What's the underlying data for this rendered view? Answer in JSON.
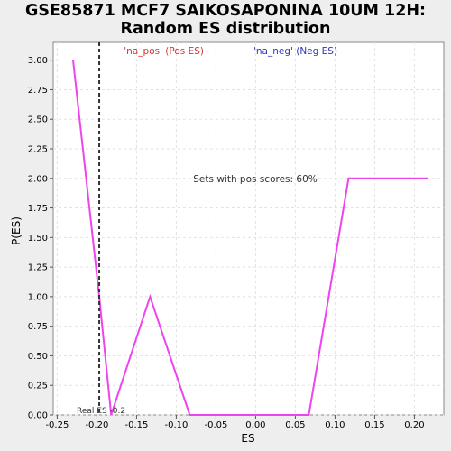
{
  "chart_data": {
    "type": "line",
    "title_line1": "GSE85871 MCF7 SAIKOSAPONINA 10UM 12H:",
    "title_line2": "Random ES distribution",
    "xlabel": "ES",
    "ylabel": "P(ES)",
    "xlim": [
      -0.255,
      0.237
    ],
    "ylim": [
      0,
      3.15
    ],
    "x_ticks": [
      -0.25,
      -0.2,
      -0.15,
      -0.1,
      -0.05,
      0.0,
      0.05,
      0.1,
      0.15,
      0.2
    ],
    "x_tick_labels": [
      "-0.25",
      "-0.20",
      "-0.15",
      "-0.10",
      "-0.05",
      "0.00",
      "0.05",
      "0.10",
      "0.15",
      "0.20"
    ],
    "y_ticks": [
      0,
      0.25,
      0.5,
      0.75,
      1.0,
      1.25,
      1.5,
      1.75,
      2.0,
      2.25,
      2.5,
      2.75,
      3.0
    ],
    "y_tick_labels": [
      "0.00",
      "0.25",
      "0.50",
      "0.75",
      "1.00",
      "1.25",
      "1.50",
      "1.75",
      "2.00",
      "2.25",
      "2.50",
      "2.75",
      "3.00"
    ],
    "grid": true,
    "series": [
      {
        "color": "#ee44ee",
        "x": [
          -0.23,
          -0.197,
          -0.182,
          -0.133,
          -0.083,
          0.067,
          0.117,
          0.217
        ],
        "y": [
          3.0,
          1.0,
          0.0,
          1.0,
          0.0,
          0.0,
          2.0,
          2.0
        ]
      }
    ],
    "real_es": -0.197,
    "real_es_label": "Real ES -0.2",
    "legend": {
      "pos_label": "'na_pos' (Pos ES)",
      "neg_label": "'na_neg' (Neg ES)",
      "pos_color": "#dd3333",
      "neg_color": "#3333bb"
    },
    "annotation": "Sets with pos scores: 60%"
  }
}
